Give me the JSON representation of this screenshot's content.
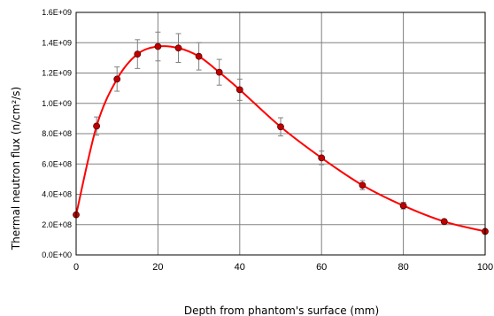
{
  "chart_data": {
    "type": "line",
    "xlabel": "Depth from phantom's surface (mm)",
    "ylabel": "Thermal neutron flux (n/cm²/s)",
    "xlim": [
      0,
      100
    ],
    "ylim": [
      0,
      1600000000
    ],
    "x_ticks": [
      0,
      20,
      40,
      60,
      80,
      100
    ],
    "y_ticks": [
      0,
      200000000,
      400000000,
      600000000,
      800000000,
      1000000000,
      1200000000,
      1400000000,
      1600000000
    ],
    "y_tick_labels": [
      "0.0E+00",
      "2.0E+08",
      "4.0E+08",
      "6.0E+08",
      "8.0E+08",
      "1.0E+09",
      "1.2E+09",
      "1.4E+09",
      "1.6E+09"
    ],
    "grid": true,
    "line_color": "#ff0000",
    "marker_color": "#c00000",
    "series": [
      {
        "x": [
          0,
          5,
          10,
          15,
          20,
          25,
          30,
          35,
          40,
          50,
          60,
          70,
          80,
          90,
          100
        ],
        "y": [
          265000000,
          850000000,
          1160000000,
          1325000000,
          1375000000,
          1365000000,
          1310000000,
          1205000000,
          1090000000,
          845000000,
          640000000,
          460000000,
          325000000,
          220000000,
          155000000
        ],
        "err": [
          0,
          60000000,
          80000000,
          95000000,
          95000000,
          95000000,
          90000000,
          85000000,
          70000000,
          60000000,
          45000000,
          30000000,
          22000000,
          15000000,
          10000000
        ]
      }
    ]
  }
}
